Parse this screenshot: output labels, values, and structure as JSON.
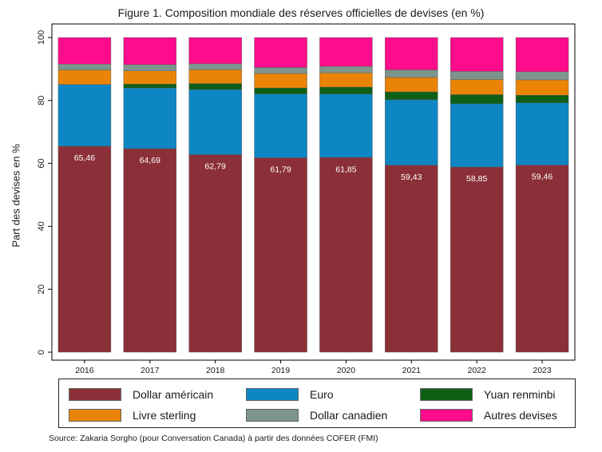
{
  "title": "Figure 1. Composition mondiale des réserves officielles de devises (en %)",
  "source": "Source: Zakaria Sorgho (pour Conversation Canada) à partir des données COFER (FMI)",
  "chart_data": {
    "type": "bar",
    "stacked": true,
    "ylabel": "Part des devises en %",
    "xlabel": "",
    "ylim": [
      0,
      100
    ],
    "yticks": [
      0,
      20,
      40,
      60,
      80,
      100
    ],
    "grid": false,
    "legend_position": "bottom",
    "categories": [
      "2016",
      "2017",
      "2018",
      "2019",
      "2020",
      "2021",
      "2022",
      "2023"
    ],
    "series": [
      {
        "name": "Dollar américain",
        "color": "#8b3038",
        "values": [
          65.46,
          64.69,
          62.79,
          61.79,
          61.85,
          59.43,
          58.85,
          59.46
        ],
        "labels": [
          "65,46",
          "64,69",
          "62,79",
          "61,79",
          "61,85",
          "59,43",
          "58,85",
          "59,46"
        ]
      },
      {
        "name": "Euro",
        "color": "#0e86c3",
        "values": [
          19.6,
          19.3,
          20.7,
          20.3,
          20.2,
          20.8,
          20.1,
          19.8
        ]
      },
      {
        "name": "Yuan renminbi",
        "color": "#0e6017",
        "values": [
          0.0,
          1.2,
          1.9,
          1.9,
          2.2,
          2.5,
          2.9,
          2.4
        ]
      },
      {
        "name": "Livre sterling",
        "color": "#ea8407",
        "values": [
          4.6,
          4.2,
          4.4,
          4.6,
          4.5,
          4.6,
          4.8,
          4.9
        ]
      },
      {
        "name": "Dollar canadien",
        "color": "#7e958d",
        "values": [
          1.9,
          2.0,
          1.9,
          1.9,
          2.1,
          2.4,
          2.6,
          2.6
        ]
      },
      {
        "name": "Autres devises",
        "color": "#ff0c8c",
        "values": [
          8.44,
          8.61,
          8.31,
          9.51,
          9.15,
          10.27,
          10.75,
          10.84
        ]
      }
    ],
    "legend_order": [
      "Dollar américain",
      "Euro",
      "Yuan renminbi",
      "Livre sterling",
      "Dollar canadien",
      "Autres devises"
    ]
  }
}
